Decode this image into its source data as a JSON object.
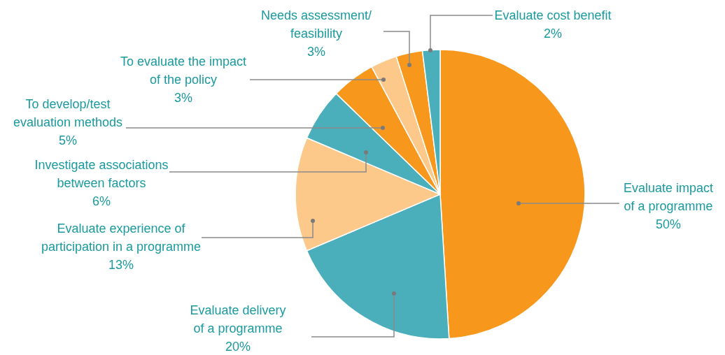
{
  "chart_data": {
    "type": "pie",
    "categories": [
      "Evaluate impact of a programme",
      "Evaluate delivery of a programme",
      "Evaluate experience of participation in a programme",
      "Investigate associations between factors",
      "To develop/test evaluation methods",
      "To evaluate the impact of the policy",
      "Needs assessment/ feasibility",
      "Evaluate cost benefit"
    ],
    "values": [
      50,
      20,
      13,
      6,
      5,
      3,
      3,
      2
    ],
    "value_labels": [
      "50%",
      "20%",
      "13%",
      "6%",
      "5%",
      "3%",
      "3%",
      "2%"
    ],
    "colors": [
      "#f7981d",
      "#4aafba",
      "#fdc98a",
      "#4aafba",
      "#f7981d",
      "#fdc98a",
      "#f7981d",
      "#4aafba"
    ]
  }
}
